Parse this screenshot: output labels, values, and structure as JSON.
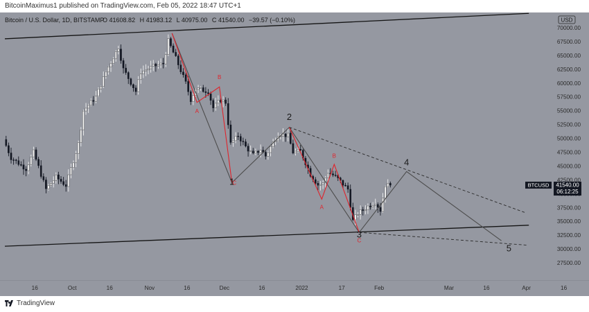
{
  "header": {
    "published": "BitcoinMaximus1 published on TradingView.com, Feb 05, 2022 18:47 UTC+1"
  },
  "footer": {
    "brand": "TradingView"
  },
  "colors": {
    "background": "#9598a1",
    "bull": "#ffffff",
    "bear": "#131722",
    "wave": "#e0232b",
    "path": "#4d4d4d",
    "channel": "#141414"
  },
  "chart_data": {
    "type": "candlestick",
    "symbol_line": "Bitcoin / U.S. Dollar, 1D, BITSTAMP",
    "ohlc_labels": {
      "o": "O",
      "o_val": "41608.82",
      "h": "H",
      "h_val": "41983.12",
      "l": "L",
      "l_val": "40975.00",
      "c": "C",
      "c_val": "41540.00",
      "chg": "−39.57 (−0.10%)"
    },
    "currency": "USD",
    "price_tag": {
      "symbol": "BTCUSD",
      "price": "41540.00",
      "countdown": "06:12:25"
    },
    "y_axis": {
      "min": 25500,
      "max": 70500,
      "ticks": [
        "70000.00",
        "67500.00",
        "65000.00",
        "62500.00",
        "60000.00",
        "57500.00",
        "55000.00",
        "52500.00",
        "50000.00",
        "47500.00",
        "45000.00",
        "42500.00",
        "40000.00",
        "37500.00",
        "35000.00",
        "32500.00",
        "30000.00",
        "27500.00"
      ]
    },
    "x_axis": {
      "start": "2021-09-04",
      "end": "2022-04-10",
      "ticks": [
        {
          "label": "16",
          "date": "2021-09-16"
        },
        {
          "label": "Oct",
          "date": "2021-10-01"
        },
        {
          "label": "16",
          "date": "2021-10-16"
        },
        {
          "label": "Nov",
          "date": "2021-11-01"
        },
        {
          "label": "16",
          "date": "2021-11-16"
        },
        {
          "label": "Dec",
          "date": "2021-12-01"
        },
        {
          "label": "16",
          "date": "2021-12-16"
        },
        {
          "label": "2022",
          "date": "2022-01-01"
        },
        {
          "label": "17",
          "date": "2022-01-17"
        },
        {
          "label": "Feb",
          "date": "2022-02-01"
        },
        {
          "label": "Mar",
          "date": "2022-03-01"
        },
        {
          "label": "16",
          "date": "2022-03-16"
        },
        {
          "label": "Apr",
          "date": "2022-04-01"
        },
        {
          "label": "16",
          "date": "2022-04-16"
        }
      ]
    },
    "price_anchors": [
      [
        "2021-09-04",
        49800
      ],
      [
        "2021-09-07",
        46500
      ],
      [
        "2021-09-13",
        44500
      ],
      [
        "2021-09-16",
        47500
      ],
      [
        "2021-09-21",
        40800
      ],
      [
        "2021-09-25",
        43000
      ],
      [
        "2021-09-29",
        41500
      ],
      [
        "2021-10-04",
        49000
      ],
      [
        "2021-10-06",
        55000
      ],
      [
        "2021-10-11",
        57500
      ],
      [
        "2021-10-15",
        62000
      ],
      [
        "2021-10-20",
        66500
      ],
      [
        "2021-10-22",
        62500
      ],
      [
        "2021-10-27",
        58500
      ],
      [
        "2021-10-29",
        62000
      ],
      [
        "2021-11-03",
        63000
      ],
      [
        "2021-11-07",
        63500
      ],
      [
        "2021-11-09",
        67600
      ],
      [
        "2021-11-12",
        64500
      ],
      [
        "2021-11-16",
        60000
      ],
      [
        "2021-11-18",
        57000
      ],
      [
        "2021-11-20",
        59000
      ],
      [
        "2021-11-25",
        58500
      ],
      [
        "2021-11-27",
        55500
      ],
      [
        "2021-11-30",
        57000
      ],
      [
        "2021-12-02",
        56500
      ],
      [
        "2021-12-04",
        49000
      ],
      [
        "2021-12-07",
        50500
      ],
      [
        "2021-12-10",
        48500
      ],
      [
        "2021-12-13",
        47000
      ],
      [
        "2021-12-16",
        48000
      ],
      [
        "2021-12-18",
        46800
      ],
      [
        "2021-12-23",
        50800
      ],
      [
        "2021-12-27",
        50500
      ],
      [
        "2021-12-29",
        47500
      ],
      [
        "2022-01-01",
        47700
      ],
      [
        "2022-01-05",
        43500
      ],
      [
        "2022-01-08",
        41600
      ],
      [
        "2022-01-10",
        41800
      ],
      [
        "2022-01-12",
        43900
      ],
      [
        "2022-01-15",
        43100
      ],
      [
        "2022-01-20",
        40800
      ],
      [
        "2022-01-22",
        35100
      ],
      [
        "2022-01-24",
        36500
      ],
      [
        "2022-01-26",
        37000
      ],
      [
        "2022-01-28",
        37700
      ],
      [
        "2022-01-31",
        38500
      ],
      [
        "2022-02-02",
        37000
      ],
      [
        "2022-02-04",
        41600
      ],
      [
        "2022-02-05",
        41540
      ]
    ],
    "channel_lines": [
      {
        "from": [
          "2021-09-04",
          68000
        ],
        "to": [
          "2022-04-02",
          72600
        ]
      },
      {
        "from": [
          "2021-09-04",
          30500
        ],
        "to": [
          "2022-04-02",
          34300
        ]
      }
    ],
    "wave_path": [
      [
        "2021-11-10",
        69000
      ],
      [
        "2021-12-04",
        42000
      ],
      [
        "2021-12-27",
        52000
      ],
      [
        "2022-01-24",
        33000
      ],
      [
        "2022-02-12",
        44000
      ],
      [
        "2022-03-22",
        31500
      ]
    ],
    "dashed_lines": [
      {
        "from": [
          "2021-12-27",
          52000
        ],
        "to": [
          "2022-04-01",
          36500
        ]
      },
      {
        "from": [
          "2022-01-24",
          33000
        ],
        "to": [
          "2022-04-01",
          30700
        ]
      }
    ],
    "red_abc": [
      [
        [
          "2021-11-10",
          69000
        ],
        [
          "2021-11-20",
          56500
        ],
        [
          "2021-11-29",
          59300
        ],
        [
          "2021-12-04",
          42000
        ]
      ],
      [
        [
          "2021-12-27",
          52000
        ],
        [
          "2022-01-09",
          39000
        ],
        [
          "2022-01-14",
          45300
        ],
        [
          "2022-01-24",
          33000
        ]
      ]
    ],
    "wave_labels": [
      {
        "text": "1",
        "at": [
          "2021-12-04",
          41600
        ],
        "color": "#1a1a1a",
        "size": 13
      },
      {
        "text": "2",
        "at": [
          "2021-12-27",
          53300
        ],
        "color": "#1a1a1a",
        "size": 13
      },
      {
        "text": "3",
        "at": [
          "2022-01-24",
          32100
        ],
        "color": "#1a1a1a",
        "size": 13
      },
      {
        "text": "4",
        "at": [
          "2022-02-12",
          45100
        ],
        "color": "#1a1a1a",
        "size": 13
      },
      {
        "text": "5",
        "at": [
          "2022-03-25",
          29600
        ],
        "color": "#1a1a1a",
        "size": 13
      },
      {
        "text": "A",
        "at": [
          "2021-11-20",
          54600
        ],
        "color": "#e0232b",
        "size": 8
      },
      {
        "text": "B",
        "at": [
          "2021-11-29",
          60700
        ],
        "color": "#e0232b",
        "size": 8
      },
      {
        "text": "C",
        "at": [
          "2021-12-05",
          41600
        ],
        "color": "#e0232b",
        "size": 8
      },
      {
        "text": "A",
        "at": [
          "2022-01-09",
          37200
        ],
        "color": "#e0232b",
        "size": 8
      },
      {
        "text": "B",
        "at": [
          "2022-01-14",
          46500
        ],
        "color": "#e0232b",
        "size": 8
      },
      {
        "text": "C",
        "at": [
          "2022-01-24",
          31200
        ],
        "color": "#e0232b",
        "size": 8
      }
    ]
  }
}
